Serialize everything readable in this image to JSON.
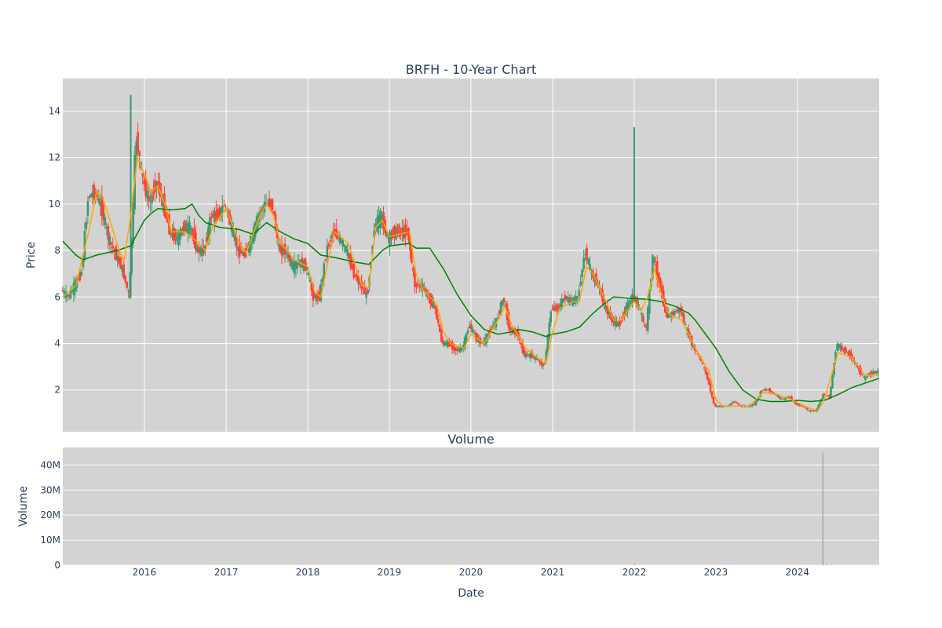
{
  "chart_data": [
    {
      "type": "candlestick",
      "title": "BRFH - 10-Year Chart",
      "ylabel": "Price",
      "xlabel": "",
      "ylim": [
        0.2,
        15.4
      ],
      "yticks": [
        2,
        4,
        6,
        8,
        10,
        12,
        14
      ],
      "x_range": [
        "2015-01-01",
        "2025-01-01"
      ],
      "grid": true,
      "legend": "none",
      "colors": {
        "increasing": "#3d9970",
        "decreasing": "#ff4136",
        "ma_short": "#ffa500",
        "ma_long": "#008000",
        "plot_bg": "#d3d3d3"
      },
      "price_path": [
        [
          "2015-01-01",
          6.3
        ],
        [
          "2015-02-01",
          6.0
        ],
        [
          "2015-03-01",
          6.5
        ],
        [
          "2015-04-01",
          7.0
        ],
        [
          "2015-05-01",
          10.3
        ],
        [
          "2015-06-01",
          10.5
        ],
        [
          "2015-07-01",
          9.8
        ],
        [
          "2015-08-01",
          8.5
        ],
        [
          "2015-09-01",
          7.8
        ],
        [
          "2015-10-01",
          7.2
        ],
        [
          "2015-11-01",
          6.0
        ],
        [
          "2015-12-01",
          13.0
        ],
        [
          "2016-01-01",
          11.0
        ],
        [
          "2016-02-01",
          10.0
        ],
        [
          "2016-03-01",
          11.0
        ],
        [
          "2016-04-01",
          10.0
        ],
        [
          "2016-05-01",
          8.8
        ],
        [
          "2016-06-01",
          8.5
        ],
        [
          "2016-07-01",
          9.0
        ],
        [
          "2016-08-01",
          9.0
        ],
        [
          "2016-09-01",
          8.0
        ],
        [
          "2016-10-01",
          8.0
        ],
        [
          "2016-11-01",
          9.5
        ],
        [
          "2016-12-01",
          9.5
        ],
        [
          "2017-01-01",
          10.0
        ],
        [
          "2017-02-01",
          9.0
        ],
        [
          "2017-03-01",
          8.0
        ],
        [
          "2017-04-01",
          7.8
        ],
        [
          "2017-05-01",
          8.5
        ],
        [
          "2017-06-01",
          9.5
        ],
        [
          "2017-07-01",
          10.0
        ],
        [
          "2017-08-01",
          10.0
        ],
        [
          "2017-09-01",
          8.0
        ],
        [
          "2017-10-01",
          8.0
        ],
        [
          "2017-11-01",
          7.3
        ],
        [
          "2017-12-01",
          7.5
        ],
        [
          "2018-01-01",
          7.3
        ],
        [
          "2018-02-01",
          6.0
        ],
        [
          "2018-03-01",
          6.0
        ],
        [
          "2018-04-01",
          8.0
        ],
        [
          "2018-05-01",
          8.8
        ],
        [
          "2018-06-01",
          8.5
        ],
        [
          "2018-07-01",
          8.0
        ],
        [
          "2018-08-01",
          7.0
        ],
        [
          "2018-09-01",
          6.5
        ],
        [
          "2018-10-01",
          6.0
        ],
        [
          "2018-11-01",
          9.0
        ],
        [
          "2018-12-01",
          9.5
        ],
        [
          "2019-01-01",
          8.5
        ],
        [
          "2019-02-01",
          8.8
        ],
        [
          "2019-03-01",
          8.8
        ],
        [
          "2019-04-01",
          8.8
        ],
        [
          "2019-05-01",
          6.5
        ],
        [
          "2019-06-01",
          6.5
        ],
        [
          "2019-07-01",
          6.0
        ],
        [
          "2019-08-01",
          5.5
        ],
        [
          "2019-09-01",
          4.0
        ],
        [
          "2019-10-01",
          4.0
        ],
        [
          "2019-11-01",
          3.7
        ],
        [
          "2019-12-01",
          3.8
        ],
        [
          "2020-01-01",
          4.8
        ],
        [
          "2020-02-01",
          4.2
        ],
        [
          "2020-03-01",
          4.0
        ],
        [
          "2020-04-01",
          4.5
        ],
        [
          "2020-05-01",
          5.0
        ],
        [
          "2020-06-01",
          6.0
        ],
        [
          "2020-07-01",
          4.5
        ],
        [
          "2020-08-01",
          4.5
        ],
        [
          "2020-09-01",
          3.5
        ],
        [
          "2020-10-01",
          3.5
        ],
        [
          "2020-11-01",
          3.3
        ],
        [
          "2020-12-01",
          3.0
        ],
        [
          "2021-01-01",
          5.5
        ],
        [
          "2021-02-01",
          5.5
        ],
        [
          "2021-03-01",
          6.0
        ],
        [
          "2021-04-01",
          5.8
        ],
        [
          "2021-05-01",
          6.0
        ],
        [
          "2021-06-01",
          8.0
        ],
        [
          "2021-07-01",
          7.0
        ],
        [
          "2021-08-01",
          6.5
        ],
        [
          "2021-09-01",
          5.5
        ],
        [
          "2021-10-01",
          5.0
        ],
        [
          "2021-11-01",
          4.8
        ],
        [
          "2021-12-01",
          5.5
        ],
        [
          "2022-01-01",
          6.0
        ],
        [
          "2022-02-01",
          5.5
        ],
        [
          "2022-03-01",
          4.5
        ],
        [
          "2022-04-01",
          7.8
        ],
        [
          "2022-05-01",
          6.5
        ],
        [
          "2022-06-01",
          5.2
        ],
        [
          "2022-07-01",
          5.3
        ],
        [
          "2022-08-01",
          5.5
        ],
        [
          "2022-09-01",
          4.5
        ],
        [
          "2022-10-01",
          3.8
        ],
        [
          "2022-11-01",
          3.3
        ],
        [
          "2022-12-01",
          2.5
        ],
        [
          "2023-01-01",
          1.3
        ],
        [
          "2023-02-01",
          1.3
        ],
        [
          "2023-03-01",
          1.3
        ],
        [
          "2023-04-01",
          1.5
        ],
        [
          "2023-05-01",
          1.3
        ],
        [
          "2023-06-01",
          1.3
        ],
        [
          "2023-07-01",
          1.4
        ],
        [
          "2023-08-01",
          2.0
        ],
        [
          "2023-09-01",
          2.0
        ],
        [
          "2023-10-01",
          1.8
        ],
        [
          "2023-11-01",
          1.6
        ],
        [
          "2023-12-01",
          1.7
        ],
        [
          "2024-01-01",
          1.4
        ],
        [
          "2024-02-01",
          1.3
        ],
        [
          "2024-03-01",
          1.1
        ],
        [
          "2024-04-01",
          1.1
        ],
        [
          "2024-05-01",
          1.8
        ],
        [
          "2024-06-01",
          1.7
        ],
        [
          "2024-07-01",
          4.0
        ],
        [
          "2024-08-01",
          3.7
        ],
        [
          "2024-09-01",
          3.5
        ],
        [
          "2024-10-01",
          3.0
        ],
        [
          "2024-11-01",
          2.5
        ],
        [
          "2024-12-01",
          2.7
        ],
        [
          "2025-01-01",
          2.8
        ]
      ],
      "spikes": [
        [
          "2015-11-01",
          14.7
        ],
        [
          "2022-01-01",
          13.3
        ]
      ],
      "ma_short": [
        [
          "2015-01-01",
          6.0
        ],
        [
          "2015-03-01",
          6.5
        ],
        [
          "2015-05-01",
          9.0
        ],
        [
          "2015-06-01",
          10.5
        ],
        [
          "2015-07-01",
          10.2
        ],
        [
          "2015-09-01",
          8.3
        ],
        [
          "2015-10-01",
          7.5
        ],
        [
          "2015-11-01",
          9.5
        ],
        [
          "2015-12-01",
          12.0
        ],
        [
          "2016-01-01",
          11.3
        ],
        [
          "2016-02-01",
          10.5
        ],
        [
          "2016-03-01",
          10.8
        ],
        [
          "2016-04-01",
          10.0
        ],
        [
          "2016-05-01",
          8.8
        ],
        [
          "2016-07-01",
          8.8
        ],
        [
          "2016-09-01",
          8.3
        ],
        [
          "2016-10-01",
          8.0
        ],
        [
          "2016-11-01",
          9.0
        ],
        [
          "2017-01-01",
          9.8
        ],
        [
          "2017-03-01",
          8.3
        ],
        [
          "2017-04-01",
          7.9
        ],
        [
          "2017-06-01",
          9.5
        ],
        [
          "2017-07-01",
          10.0
        ],
        [
          "2017-08-01",
          9.5
        ],
        [
          "2017-09-01",
          8.3
        ],
        [
          "2017-10-01",
          8.0
        ],
        [
          "2017-11-01",
          7.6
        ],
        [
          "2018-01-01",
          7.3
        ],
        [
          "2018-02-01",
          6.2
        ],
        [
          "2018-03-01",
          6.0
        ],
        [
          "2018-04-01",
          7.5
        ],
        [
          "2018-05-01",
          8.8
        ],
        [
          "2018-07-01",
          8.3
        ],
        [
          "2018-09-01",
          6.5
        ],
        [
          "2018-10-01",
          6.4
        ],
        [
          "2018-11-01",
          9.0
        ],
        [
          "2018-12-01",
          9.3
        ],
        [
          "2019-01-01",
          8.6
        ],
        [
          "2019-04-01",
          8.8
        ],
        [
          "2019-05-01",
          7.0
        ],
        [
          "2019-06-01",
          6.3
        ],
        [
          "2019-08-01",
          5.7
        ],
        [
          "2019-09-01",
          4.5
        ],
        [
          "2019-10-01",
          4.0
        ],
        [
          "2019-12-01",
          3.8
        ],
        [
          "2020-01-01",
          4.4
        ],
        [
          "2020-03-01",
          4.0
        ],
        [
          "2020-05-01",
          5.0
        ],
        [
          "2020-06-01",
          5.6
        ],
        [
          "2020-07-01",
          4.8
        ],
        [
          "2020-09-01",
          3.8
        ],
        [
          "2020-12-01",
          3.1
        ],
        [
          "2021-01-01",
          4.5
        ],
        [
          "2021-02-01",
          5.5
        ],
        [
          "2021-04-01",
          5.8
        ],
        [
          "2021-05-01",
          5.8
        ],
        [
          "2021-06-01",
          7.3
        ],
        [
          "2021-07-01",
          7.0
        ],
        [
          "2021-09-01",
          5.7
        ],
        [
          "2021-10-01",
          5.0
        ],
        [
          "2021-11-01",
          5.0
        ],
        [
          "2022-01-01",
          5.8
        ],
        [
          "2022-02-01",
          5.4
        ],
        [
          "2022-03-01",
          6.0
        ],
        [
          "2022-04-01",
          7.2
        ],
        [
          "2022-05-01",
          6.2
        ],
        [
          "2022-06-01",
          5.3
        ],
        [
          "2022-08-01",
          5.0
        ],
        [
          "2022-10-01",
          3.8
        ],
        [
          "2022-12-01",
          2.8
        ],
        [
          "2023-01-01",
          1.6
        ],
        [
          "2023-02-01",
          1.3
        ],
        [
          "2023-06-01",
          1.3
        ],
        [
          "2023-08-01",
          1.9
        ],
        [
          "2023-10-01",
          1.8
        ],
        [
          "2023-12-01",
          1.6
        ],
        [
          "2024-02-01",
          1.3
        ],
        [
          "2024-04-01",
          1.1
        ],
        [
          "2024-05-01",
          1.6
        ],
        [
          "2024-07-01",
          3.6
        ],
        [
          "2024-09-01",
          3.4
        ],
        [
          "2024-11-01",
          2.6
        ],
        [
          "2025-01-01",
          2.7
        ]
      ],
      "ma_long": [
        [
          "2015-01-01",
          8.4
        ],
        [
          "2015-03-01",
          7.8
        ],
        [
          "2015-04-01",
          7.6
        ],
        [
          "2015-06-01",
          7.8
        ],
        [
          "2015-09-01",
          8.0
        ],
        [
          "2015-11-01",
          8.2
        ],
        [
          "2016-01-01",
          9.3
        ],
        [
          "2016-02-01",
          9.6
        ],
        [
          "2016-03-01",
          9.8
        ],
        [
          "2016-05-01",
          9.75
        ],
        [
          "2016-07-01",
          9.8
        ],
        [
          "2016-08-01",
          10.0
        ],
        [
          "2016-09-01",
          9.5
        ],
        [
          "2016-10-01",
          9.2
        ],
        [
          "2016-12-01",
          9.0
        ],
        [
          "2017-03-01",
          8.9
        ],
        [
          "2017-05-01",
          8.7
        ],
        [
          "2017-07-01",
          9.2
        ],
        [
          "2017-09-01",
          8.8
        ],
        [
          "2017-11-01",
          8.5
        ],
        [
          "2018-01-01",
          8.3
        ],
        [
          "2018-03-01",
          7.8
        ],
        [
          "2018-05-01",
          7.7
        ],
        [
          "2018-08-01",
          7.5
        ],
        [
          "2018-10-01",
          7.4
        ],
        [
          "2018-12-01",
          8.0
        ],
        [
          "2019-01-01",
          8.2
        ],
        [
          "2019-04-01",
          8.3
        ],
        [
          "2019-05-01",
          8.1
        ],
        [
          "2019-07-01",
          8.1
        ],
        [
          "2019-09-01",
          7.2
        ],
        [
          "2019-11-01",
          6.1
        ],
        [
          "2020-01-01",
          5.2
        ],
        [
          "2020-03-01",
          4.6
        ],
        [
          "2020-05-01",
          4.4
        ],
        [
          "2020-07-01",
          4.5
        ],
        [
          "2020-08-01",
          4.6
        ],
        [
          "2020-10-01",
          4.5
        ],
        [
          "2020-12-01",
          4.3
        ],
        [
          "2021-01-01",
          4.4
        ],
        [
          "2021-03-01",
          4.5
        ],
        [
          "2021-05-01",
          4.7
        ],
        [
          "2021-07-01",
          5.3
        ],
        [
          "2021-09-01",
          5.8
        ],
        [
          "2021-10-01",
          6.0
        ],
        [
          "2021-12-01",
          5.95
        ],
        [
          "2022-03-01",
          5.9
        ],
        [
          "2022-05-01",
          5.8
        ],
        [
          "2022-07-01",
          5.6
        ],
        [
          "2022-09-01",
          5.3
        ],
        [
          "2022-10-01",
          5.0
        ],
        [
          "2022-12-01",
          4.2
        ],
        [
          "2023-01-01",
          3.8
        ],
        [
          "2023-03-01",
          2.8
        ],
        [
          "2023-05-01",
          2.0
        ],
        [
          "2023-07-01",
          1.6
        ],
        [
          "2023-09-01",
          1.5
        ],
        [
          "2023-11-01",
          1.5
        ],
        [
          "2024-01-01",
          1.55
        ],
        [
          "2024-03-01",
          1.5
        ],
        [
          "2024-05-01",
          1.55
        ],
        [
          "2024-07-01",
          1.8
        ],
        [
          "2024-09-01",
          2.1
        ],
        [
          "2024-11-01",
          2.3
        ],
        [
          "2025-01-01",
          2.5
        ]
      ]
    },
    {
      "type": "bar",
      "title": "Volume",
      "ylabel": "Volume",
      "xlabel": "Date",
      "ylim": [
        0,
        47000000
      ],
      "yticks": [
        0,
        10000000,
        20000000,
        30000000,
        40000000
      ],
      "ytick_labels": [
        "0",
        "10M",
        "20M",
        "30M",
        "40M"
      ],
      "xticks": [
        "2016-01-01",
        "2017-01-01",
        "2018-01-01",
        "2019-01-01",
        "2020-01-01",
        "2021-01-01",
        "2022-01-01",
        "2023-01-01",
        "2024-01-01"
      ],
      "xtick_labels": [
        "2016",
        "2017",
        "2018",
        "2019",
        "2020",
        "2021",
        "2022",
        "2023",
        "2024"
      ],
      "grid": true,
      "bars": [
        [
          "2024-04-25",
          45000000
        ],
        [
          "2022-01-04",
          400000
        ],
        [
          "2024-05-10",
          500000
        ],
        [
          "2024-06-05",
          300000
        ],
        [
          "2024-07-20",
          250000
        ]
      ]
    }
  ]
}
